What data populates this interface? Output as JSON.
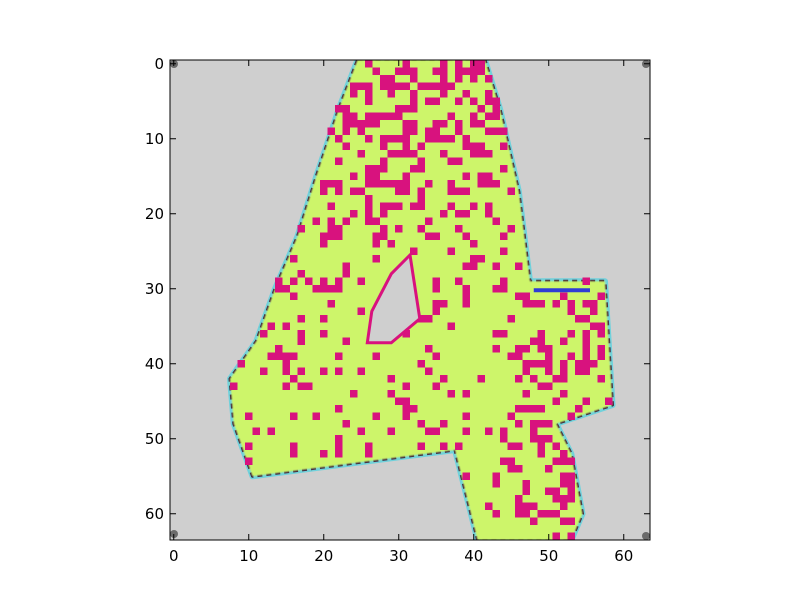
{
  "chart_data": {
    "type": "heatmap",
    "title": "",
    "xlabel": "",
    "ylabel": "",
    "image_size": [
      64,
      64
    ],
    "xlim": [
      -0.5,
      63.5
    ],
    "ylim": [
      63.5,
      -0.5
    ],
    "x_ticks": [
      0,
      10,
      20,
      30,
      40,
      50,
      60
    ],
    "y_ticks": [
      0,
      10,
      20,
      30,
      40,
      50,
      60
    ],
    "x_tick_labels": [
      "0",
      "10",
      "20",
      "30",
      "40",
      "50",
      "60"
    ],
    "y_tick_labels": [
      "0",
      "10",
      "20",
      "30",
      "40",
      "50",
      "60"
    ],
    "grid": false,
    "colors": {
      "background": "#cfcfcf",
      "glyph_fill": "#cdf56a",
      "glyph_noise": "#d8127e",
      "edge_cyan": "#22d4e6",
      "edge_blue": "#2e3cd6",
      "edge_dark": "#3a1c3a"
    },
    "glyph_outline": [
      [
        24.5,
        -0.5
      ],
      [
        41.5,
        -0.5
      ],
      [
        43.5,
        6
      ],
      [
        46,
        17
      ],
      [
        47.5,
        29
      ],
      [
        57.5,
        29
      ],
      [
        58.5,
        45.5
      ],
      [
        51,
        48
      ],
      [
        53,
        52
      ],
      [
        54.5,
        60
      ],
      [
        53,
        63.5
      ],
      [
        40.5,
        63.5
      ],
      [
        37.5,
        51.5
      ],
      [
        10.5,
        55
      ],
      [
        8,
        48
      ],
      [
        7.5,
        42
      ],
      [
        11,
        37
      ],
      [
        13.5,
        30
      ],
      [
        16.5,
        23
      ],
      [
        19,
        15
      ],
      [
        22,
        6
      ]
    ],
    "glyph_hole": [
      [
        31.5,
        25.5
      ],
      [
        32.8,
        34
      ],
      [
        29,
        37.2
      ],
      [
        25.8,
        37.2
      ],
      [
        26.4,
        33
      ],
      [
        29,
        28
      ]
    ]
  }
}
